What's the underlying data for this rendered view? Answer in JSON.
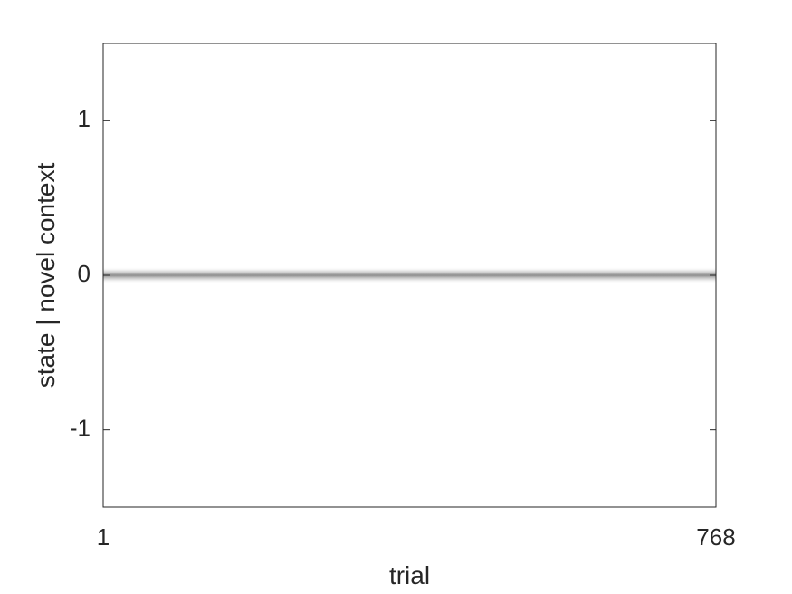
{
  "chart_data": {
    "type": "heatmap",
    "title": "",
    "xlabel": "trial",
    "ylabel": "state | novel context",
    "xlim": [
      1,
      768
    ],
    "ylim": [
      -1.5,
      1.5
    ],
    "x_ticks": [
      "1",
      "768"
    ],
    "y_ticks": [
      "1",
      "0",
      "-1"
    ],
    "grid": false,
    "colormap": "grayscale (white = low density, gray = high density)",
    "band_color": "#8c8c8c",
    "series": [
      {
        "x": [
          1,
          768
        ],
        "y_mean": [
          0,
          0
        ]
      }
    ]
  }
}
